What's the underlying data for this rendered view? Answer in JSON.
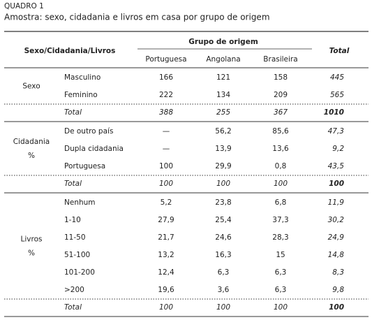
{
  "header": {
    "label": "QUADRO 1",
    "title": "Amostra: sexo, cidadania e livros em casa por grupo de origem"
  },
  "table": {
    "row_header": "Sexo/Cidadania/Livros",
    "group_header": "Grupo de origem",
    "columns": [
      "Portuguesa",
      "Angolana",
      "Brasileira"
    ],
    "total_header": "Total",
    "groups": [
      {
        "label": [
          "Sexo"
        ],
        "rows": [
          [
            "Masculino",
            "166",
            "121",
            "158",
            "445"
          ],
          [
            "Feminino",
            "222",
            "134",
            "209",
            "565"
          ]
        ],
        "total_row": [
          "Total",
          "388",
          "255",
          "367",
          "1010"
        ]
      },
      {
        "label": [
          "Cidadania",
          "%"
        ],
        "rows": [
          [
            "De outro país",
            "—",
            "56,2",
            "85,6",
            "47,3"
          ],
          [
            "Dupla cidadania",
            "—",
            "13,9",
            "13,6",
            "9,2"
          ],
          [
            "Portuguesa",
            "100",
            "29,9",
            "0,8",
            "43,5"
          ]
        ],
        "total_row": [
          "Total",
          "100",
          "100",
          "100",
          "100"
        ]
      },
      {
        "label": [
          "Livros",
          "%"
        ],
        "rows": [
          [
            "Nenhum",
            "5,2",
            "23,8",
            "6,8",
            "11,9"
          ],
          [
            "1-10",
            "27,9",
            "25,4",
            "37,3",
            "30,2"
          ],
          [
            "11-50",
            "21,7",
            "24,6",
            "28,3",
            "24,9"
          ],
          [
            "51-100",
            "13,2",
            "16,3",
            "15",
            "14,8"
          ],
          [
            "101-200",
            "12,4",
            "6,3",
            "6,3",
            "8,3"
          ],
          [
            ">200",
            "19,6",
            "3,6",
            "6,3",
            "9,8"
          ]
        ],
        "total_row": [
          "Total",
          "100",
          "100",
          "100",
          "100"
        ]
      }
    ]
  }
}
